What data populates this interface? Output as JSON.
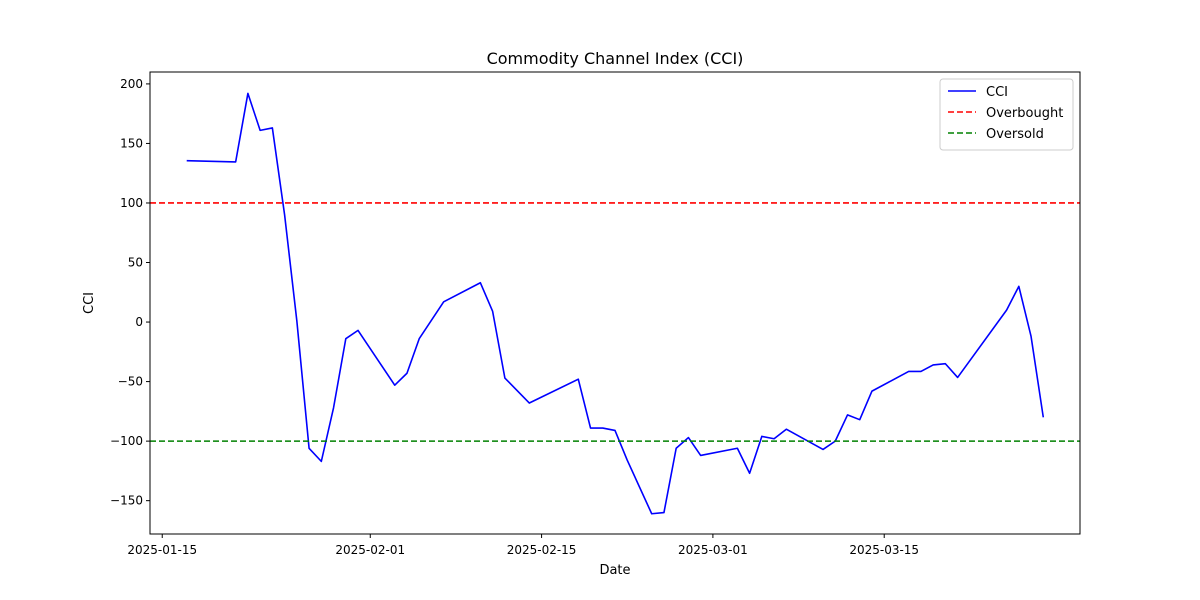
{
  "chart_data": {
    "type": "line",
    "title": "Commodity Channel Index (CCI)",
    "xlabel": "Date",
    "ylabel": "CCI",
    "xlim": [
      "2025-01-14",
      "2025-03-31"
    ],
    "ylim": [
      -178,
      210
    ],
    "x_ticks": [
      "2025-01-15",
      "2025-02-01",
      "2025-02-15",
      "2025-03-01",
      "2025-03-15"
    ],
    "y_ticks": [
      -150,
      -100,
      -50,
      0,
      50,
      100,
      150,
      200
    ],
    "grid": false,
    "legend_position": "top-right",
    "series": [
      {
        "name": "CCI",
        "color": "#0000ff",
        "style": "solid",
        "points": [
          [
            "2025-01-17",
            135.5
          ],
          [
            "2025-01-21",
            134.5
          ],
          [
            "2025-01-22",
            192
          ],
          [
            "2025-01-23",
            161
          ],
          [
            "2025-01-24",
            163
          ],
          [
            "2025-01-25",
            90
          ],
          [
            "2025-01-26",
            1
          ],
          [
            "2025-01-27",
            -106
          ],
          [
            "2025-01-28",
            -117
          ],
          [
            "2025-01-29",
            -72
          ],
          [
            "2025-01-30",
            -14
          ],
          [
            "2025-01-31",
            -7
          ],
          [
            "2025-02-03",
            -53
          ],
          [
            "2025-02-04",
            -43
          ],
          [
            "2025-02-05",
            -14
          ],
          [
            "2025-02-07",
            17
          ],
          [
            "2025-02-10",
            33
          ],
          [
            "2025-02-11",
            9
          ],
          [
            "2025-02-12",
            -47
          ],
          [
            "2025-02-14",
            -68
          ],
          [
            "2025-02-18",
            -48
          ],
          [
            "2025-02-19",
            -89
          ],
          [
            "2025-02-20",
            -89
          ],
          [
            "2025-02-21",
            -91
          ],
          [
            "2025-02-22",
            -116
          ],
          [
            "2025-02-24",
            -161
          ],
          [
            "2025-02-25",
            -160
          ],
          [
            "2025-02-26",
            -106
          ],
          [
            "2025-02-27",
            -97
          ],
          [
            "2025-02-28",
            -112
          ],
          [
            "2025-03-03",
            -106
          ],
          [
            "2025-03-04",
            -127
          ],
          [
            "2025-03-05",
            -96
          ],
          [
            "2025-03-06",
            -98
          ],
          [
            "2025-03-07",
            -90
          ],
          [
            "2025-03-10",
            -107
          ],
          [
            "2025-03-11",
            -100
          ],
          [
            "2025-03-12",
            -78
          ],
          [
            "2025-03-13",
            -82
          ],
          [
            "2025-03-14",
            -58
          ],
          [
            "2025-03-17",
            -41.5
          ],
          [
            "2025-03-18",
            -41.5
          ],
          [
            "2025-03-19",
            -36
          ],
          [
            "2025-03-20",
            -35
          ],
          [
            "2025-03-21",
            -46.5
          ],
          [
            "2025-03-25",
            10
          ],
          [
            "2025-03-26",
            30
          ],
          [
            "2025-03-27",
            -12
          ],
          [
            "2025-03-28",
            -80
          ]
        ]
      },
      {
        "name": "Overbought",
        "color": "#ff0000",
        "style": "dashed",
        "value": 100
      },
      {
        "name": "Oversold",
        "color": "#008000",
        "style": "dashed",
        "value": -100
      }
    ]
  }
}
